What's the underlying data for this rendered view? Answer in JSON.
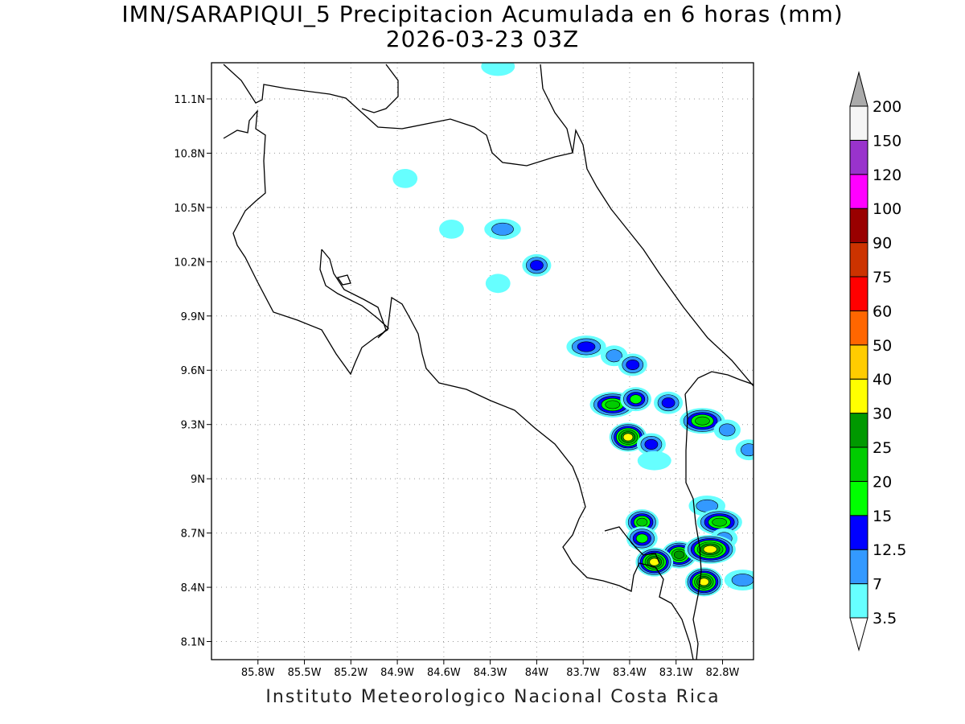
{
  "title_line1": "IMN/SARAPIQUI_5 Precipitacion Acumulada en 6 horas (mm)",
  "title_line2": "2026-03-23 03Z",
  "footer": "Instituto Meteorologico Nacional Costa Rica",
  "map": {
    "lon_range": [
      -86.1,
      -82.6
    ],
    "lat_range": [
      8.0,
      11.3
    ],
    "lon_ticks": [
      {
        "value": -85.8,
        "label": "85.8W"
      },
      {
        "value": -85.5,
        "label": "85.5W"
      },
      {
        "value": -85.2,
        "label": "85.2W"
      },
      {
        "value": -84.9,
        "label": "84.9W"
      },
      {
        "value": -84.6,
        "label": "84.6W"
      },
      {
        "value": -84.3,
        "label": "84.3W"
      },
      {
        "value": -84.0,
        "label": "84W"
      },
      {
        "value": -83.7,
        "label": "83.7W"
      },
      {
        "value": -83.4,
        "label": "83.4W"
      },
      {
        "value": -83.1,
        "label": "83.1W"
      },
      {
        "value": -82.8,
        "label": "82.8W"
      }
    ],
    "lat_ticks": [
      {
        "value": 8.1,
        "label": "8.1N"
      },
      {
        "value": 8.4,
        "label": "8.4N"
      },
      {
        "value": 8.7,
        "label": "8.7N"
      },
      {
        "value": 9.0,
        "label": "9N"
      },
      {
        "value": 9.3,
        "label": "9.3N"
      },
      {
        "value": 9.6,
        "label": "9.6N"
      },
      {
        "value": 9.9,
        "label": "9.9N"
      },
      {
        "value": 10.2,
        "label": "10.2N"
      },
      {
        "value": 10.5,
        "label": "10.5N"
      },
      {
        "value": 10.8,
        "label": "10.8N"
      },
      {
        "value": 11.1,
        "label": "11.1N"
      }
    ],
    "grid": "dotted"
  },
  "colorbar": {
    "levels": [
      {
        "label": "3.5",
        "color": "#66ffff"
      },
      {
        "label": "7",
        "color": "#3399ff"
      },
      {
        "label": "12.5",
        "color": "#0000ff"
      },
      {
        "label": "15",
        "color": "#00ff00"
      },
      {
        "label": "20",
        "color": "#00cc00"
      },
      {
        "label": "25",
        "color": "#009900"
      },
      {
        "label": "30",
        "color": "#ffff00"
      },
      {
        "label": "40",
        "color": "#ffcc00"
      },
      {
        "label": "50",
        "color": "#ff6600"
      },
      {
        "label": "60",
        "color": "#ff0000"
      },
      {
        "label": "75",
        "color": "#cc3300"
      },
      {
        "label": "90",
        "color": "#990000"
      },
      {
        "label": "100",
        "color": "#ff00ff"
      },
      {
        "label": "120",
        "color": "#9933cc"
      },
      {
        "label": "150",
        "color": "#f5f5f5"
      },
      {
        "label": "200",
        "color": "#aaaaaa"
      }
    ]
  },
  "precip_cells": [
    {
      "lon": -84.25,
      "lat": 11.28,
      "value": 3.5
    },
    {
      "lon": -84.85,
      "lat": 10.66,
      "value": 3.5
    },
    {
      "lon": -84.55,
      "lat": 10.38,
      "value": 3.5
    },
    {
      "lon": -84.22,
      "lat": 10.38,
      "value": 7
    },
    {
      "lon": -84.0,
      "lat": 10.18,
      "value": 12.5
    },
    {
      "lon": -84.25,
      "lat": 10.08,
      "value": 3.5
    },
    {
      "lon": -83.68,
      "lat": 9.73,
      "value": 12.5
    },
    {
      "lon": -83.5,
      "lat": 9.68,
      "value": 7
    },
    {
      "lon": -83.38,
      "lat": 9.63,
      "value": 12.5
    },
    {
      "lon": -83.51,
      "lat": 9.41,
      "value": 20
    },
    {
      "lon": -83.36,
      "lat": 9.44,
      "value": 15
    },
    {
      "lon": -83.15,
      "lat": 9.42,
      "value": 12.5
    },
    {
      "lon": -82.93,
      "lat": 9.32,
      "value": 20
    },
    {
      "lon": -83.41,
      "lat": 9.23,
      "value": 30
    },
    {
      "lon": -83.26,
      "lat": 9.19,
      "value": 12.5
    },
    {
      "lon": -83.24,
      "lat": 9.1,
      "value": 3.5
    },
    {
      "lon": -82.77,
      "lat": 9.27,
      "value": 7
    },
    {
      "lon": -82.63,
      "lat": 9.16,
      "value": 7
    },
    {
      "lon": -82.9,
      "lat": 8.85,
      "value": 7
    },
    {
      "lon": -83.32,
      "lat": 8.76,
      "value": 20
    },
    {
      "lon": -83.32,
      "lat": 8.67,
      "value": 15
    },
    {
      "lon": -82.82,
      "lat": 8.76,
      "value": 20
    },
    {
      "lon": -82.79,
      "lat": 8.67,
      "value": 7
    },
    {
      "lon": -83.08,
      "lat": 8.58,
      "value": 25
    },
    {
      "lon": -82.88,
      "lat": 8.61,
      "value": 30
    },
    {
      "lon": -83.24,
      "lat": 8.54,
      "value": 30
    },
    {
      "lon": -82.92,
      "lat": 8.43,
      "value": 30
    },
    {
      "lon": -82.67,
      "lat": 8.44,
      "value": 7
    }
  ]
}
